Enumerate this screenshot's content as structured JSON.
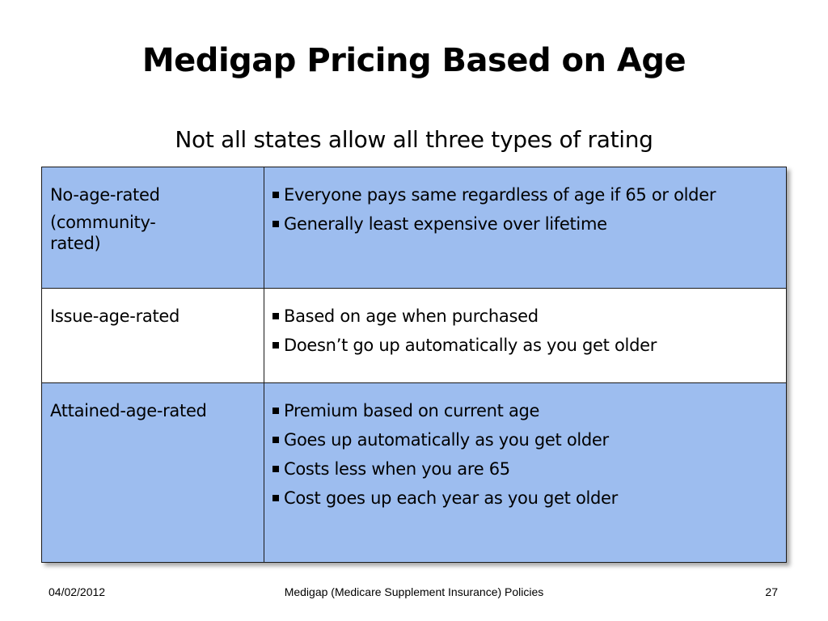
{
  "slide": {
    "title": "Medigap Pricing Based on Age",
    "subtitle": "Not all states allow all three types of rating"
  },
  "table": {
    "rows": [
      {
        "type_lines": [
          "No-age-rated",
          "(community-rated)"
        ],
        "bullets": [
          "Everyone pays same regardless of age if 65 or older",
          "Generally least expensive over lifetime"
        ],
        "background": "#9dbdef"
      },
      {
        "type_lines": [
          "Issue-age-rated"
        ],
        "bullets": [
          "Based on age when purchased",
          "Doesn’t go up automatically as you get older"
        ],
        "background": "#ffffff"
      },
      {
        "type_lines": [
          "Attained-age-rated"
        ],
        "bullets": [
          "Premium based on current age",
          "Goes up automatically as you get older",
          "Costs less when you are 65",
          "Cost goes up each year as you get older"
        ],
        "background": "#9dbdef"
      }
    ]
  },
  "footer": {
    "date": "04/02/2012",
    "center": "Medigap (Medicare Supplement Insurance) Policies",
    "page": "27"
  },
  "colors": {
    "row_blue": "#9dbdef",
    "row_white": "#ffffff",
    "border": "#1a1a1a"
  },
  "icons": {
    "bullet": "square-bullet-icon"
  }
}
